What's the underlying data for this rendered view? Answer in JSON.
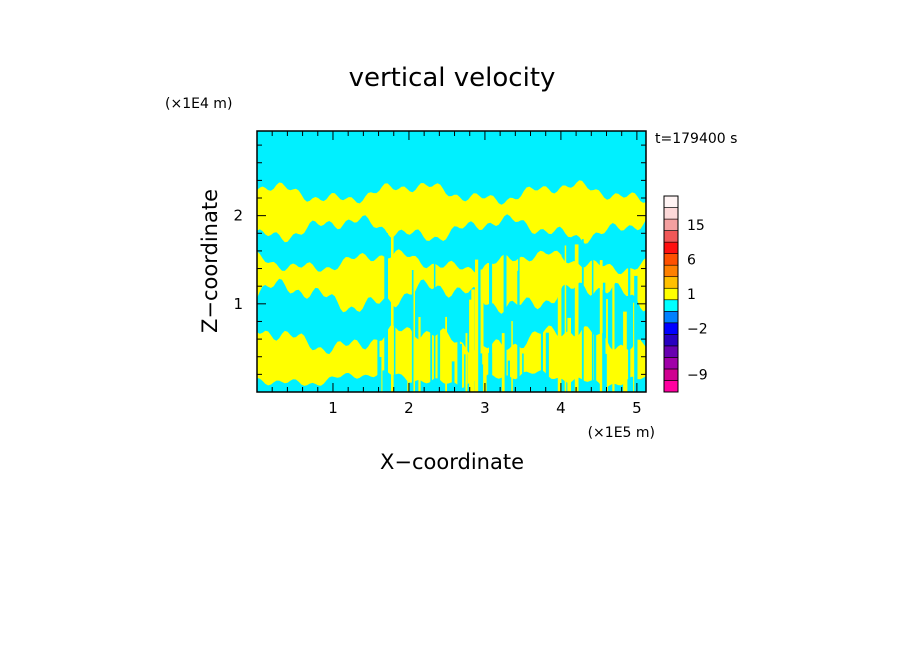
{
  "chart_data": {
    "type": "heatmap",
    "title": "vertical velocity",
    "xlabel": "X−coordinate",
    "ylabel": "Z−coordinate",
    "x_unit": "(×1E5 m)",
    "y_unit": "(×1E4 m)",
    "time_label": "t=179400 s",
    "xlim": [
      0,
      5.12
    ],
    "ylim": [
      0,
      2.96
    ],
    "x_ticks": [
      {
        "value": 1,
        "label": "1"
      },
      {
        "value": 2,
        "label": "2"
      },
      {
        "value": 3,
        "label": "3"
      },
      {
        "value": 4,
        "label": "4"
      },
      {
        "value": 5,
        "label": "5"
      }
    ],
    "y_ticks": [
      {
        "value": 1,
        "label": "1"
      },
      {
        "value": 2,
        "label": "2"
      }
    ],
    "colorbar": {
      "levels": [
        {
          "color": "#ff00a0"
        },
        {
          "color": "#d00090"
        },
        {
          "color": "#a000a8"
        },
        {
          "color": "#6800b0"
        },
        {
          "color": "#2800c0"
        },
        {
          "color": "#0000ff"
        },
        {
          "color": "#0080ff"
        },
        {
          "color": "#00ffff"
        },
        {
          "color": "#ffff00"
        },
        {
          "color": "#ffc000"
        },
        {
          "color": "#ff8000"
        },
        {
          "color": "#ff5000"
        },
        {
          "color": "#ff1010"
        },
        {
          "color": "#f05858"
        },
        {
          "color": "#f4a0a0"
        },
        {
          "color": "#fcd8d8"
        },
        {
          "color": "#fff4f4"
        }
      ],
      "labels": [
        {
          "value": -9,
          "label": "−9"
        },
        {
          "value": -2,
          "label": "−2"
        },
        {
          "value": 1,
          "label": "1"
        },
        {
          "value": 6,
          "label": "6"
        },
        {
          "value": 15,
          "label": "15"
        }
      ]
    },
    "field_colors": {
      "positive": "#ffff00",
      "negative": "#00f0ff"
    },
    "bands": [
      {
        "z": 0.15,
        "amp": 0.1
      },
      {
        "z": 0.6,
        "amp": 0.18
      },
      {
        "z": 1.08,
        "amp": 0.2
      },
      {
        "z": 1.48,
        "amp": 0.14
      },
      {
        "z": 1.85,
        "amp": 0.16
      },
      {
        "z": 2.26,
        "amp": 0.14
      },
      {
        "z": 2.68,
        "amp": 0.12
      }
    ]
  }
}
